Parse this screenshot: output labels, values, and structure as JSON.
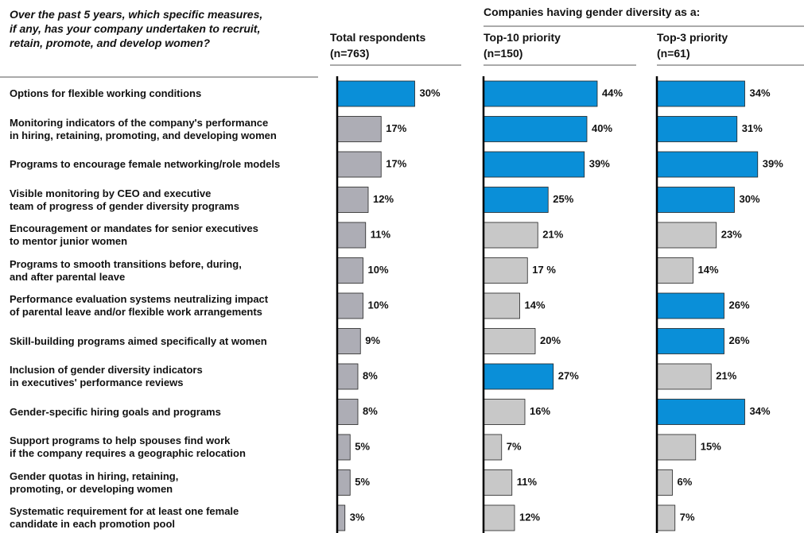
{
  "chart_data": {
    "type": "bar",
    "orientation": "horizontal",
    "title": "Over the past 5 years, which specific measures,\nif any, has your company undertaken to recruit,\nretain, promote, and develop women?",
    "group_label": "Companies having gender diversity as a:",
    "categories": [
      "Options for flexible working conditions",
      "Monitoring indicators of the company's performance\nin hiring, retaining, promoting, and developing women",
      "Programs to encourage female networking/role models",
      "Visible monitoring by CEO and executive\nteam of progress of gender diversity programs",
      "Encouragement or mandates for senior executives\nto mentor junior women",
      "Programs to smooth transitions before, during,\nand after parental leave",
      "Performance evaluation systems neutralizing impact\nof parental leave and/or flexible work arrangements",
      "Skill-building programs aimed specifically at women",
      "Inclusion of gender diversity indicators\nin executives' performance reviews",
      "Gender-specific hiring goals and programs",
      "Support programs to help spouses find work\nif the company requires a geographic relocation",
      "Gender quotas in hiring, retaining,\npromoting, or developing women",
      "Systematic requirement for at least one female\ncandidate in each promotion pool"
    ],
    "series": [
      {
        "name": "Total respondents\n(n=763)",
        "values": [
          30,
          17,
          17,
          12,
          11,
          10,
          10,
          9,
          8,
          8,
          5,
          5,
          3
        ],
        "value_labels": [
          "30%",
          "17%",
          "17%",
          "12%",
          "11%",
          "10%",
          "10%",
          "9%",
          "8%",
          "8%",
          "5%",
          "5%",
          "3%"
        ],
        "colors": [
          "#0a8fd8",
          "#adadb5",
          "#adadb5",
          "#adadb5",
          "#adadb5",
          "#adadb5",
          "#adadb5",
          "#adadb5",
          "#adadb5",
          "#adadb5",
          "#adadb5",
          "#adadb5",
          "#adadb5"
        ]
      },
      {
        "name": "Top-10 priority\n(n=150)",
        "values": [
          44,
          40,
          39,
          25,
          21,
          17,
          14,
          20,
          27,
          16,
          7,
          11,
          12
        ],
        "value_labels": [
          "44%",
          "40%",
          "39%",
          "25%",
          "21%",
          "17 %",
          "14%",
          "20%",
          "27%",
          "16%",
          "7%",
          "11%",
          "12%"
        ],
        "colors": [
          "#0a8fd8",
          "#0a8fd8",
          "#0a8fd8",
          "#0a8fd8",
          "#c8c8c8",
          "#c8c8c8",
          "#c8c8c8",
          "#c8c8c8",
          "#0a8fd8",
          "#c8c8c8",
          "#c8c8c8",
          "#c8c8c8",
          "#c8c8c8"
        ]
      },
      {
        "name": "Top-3 priority\n(n=61)",
        "values": [
          34,
          31,
          39,
          30,
          23,
          14,
          26,
          26,
          21,
          34,
          15,
          6,
          7
        ],
        "value_labels": [
          "34%",
          "31%",
          "39%",
          "30%",
          "23%",
          "14%",
          "26%",
          "26%",
          "21%",
          "34%",
          "15%",
          "6%",
          "7%"
        ],
        "colors": [
          "#0a8fd8",
          "#0a8fd8",
          "#0a8fd8",
          "#0a8fd8",
          "#c8c8c8",
          "#c8c8c8",
          "#0a8fd8",
          "#0a8fd8",
          "#c8c8c8",
          "#0a8fd8",
          "#c8c8c8",
          "#c8c8c8",
          "#c8c8c8"
        ]
      }
    ]
  }
}
